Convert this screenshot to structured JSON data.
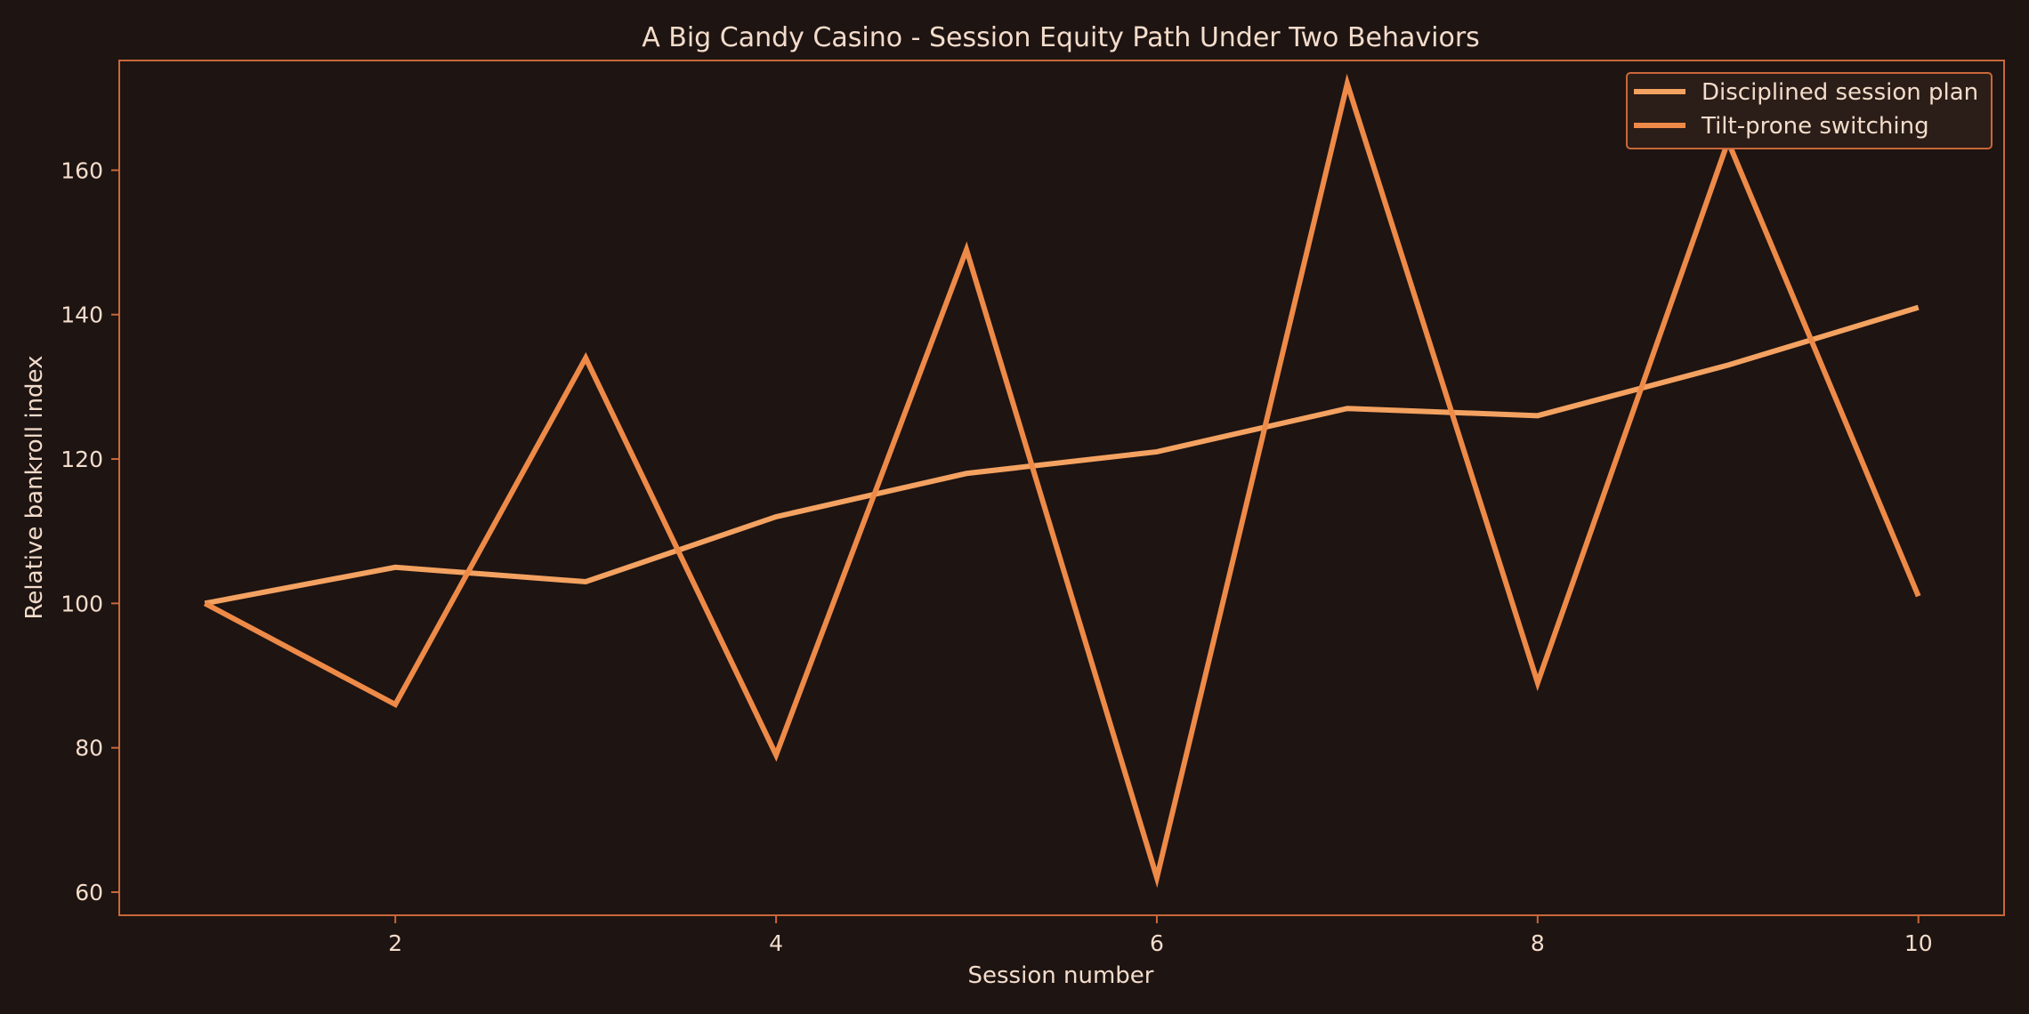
{
  "chart_data": {
    "type": "line",
    "title": "A Big Candy Casino - Session Equity Path Under Two Behaviors",
    "xlabel": "Session number",
    "ylabel": "Relative bankroll index",
    "x": [
      1,
      2,
      3,
      4,
      5,
      6,
      7,
      8,
      9,
      10
    ],
    "xlim": [
      0.55,
      10.45
    ],
    "ylim": [
      56.8,
      175.2
    ],
    "xticks": [
      2,
      4,
      6,
      8,
      10
    ],
    "yticks": [
      60,
      80,
      100,
      120,
      140,
      160
    ],
    "grid": false,
    "legend_position": "top-right",
    "series": [
      {
        "name": "Disciplined session plan",
        "color": "#f4a261",
        "values": [
          100,
          105,
          103,
          112,
          118,
          121,
          127,
          126,
          133,
          141
        ]
      },
      {
        "name": "Tilt-prone switching",
        "color": "#ee8a48",
        "values": [
          100,
          86,
          134,
          79,
          149,
          62,
          172,
          89,
          164,
          101
        ]
      }
    ]
  },
  "colors": {
    "background": "#1e1412",
    "plot_background": "#1e1412",
    "axes_edge": "#c8683a",
    "text": "#f3dccb",
    "legend_background": "#2b1d17",
    "legend_edge": "#c8683a"
  }
}
